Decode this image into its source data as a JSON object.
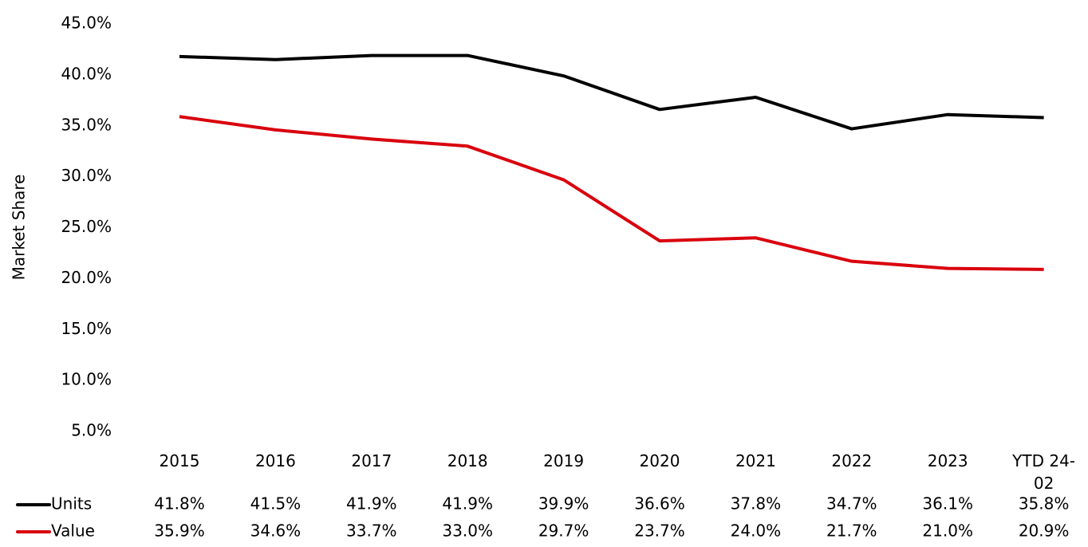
{
  "chart_data": {
    "type": "line",
    "y_label": "Market Share",
    "categories": [
      "2015",
      "2016",
      "2017",
      "2018",
      "2019",
      "2020",
      "2021",
      "2022",
      "2023",
      "YTD 24-02"
    ],
    "series": [
      {
        "name": "Units",
        "color": "#000000",
        "values": [
          41.8,
          41.5,
          41.9,
          41.9,
          39.9,
          36.6,
          37.8,
          34.7,
          36.1,
          35.8
        ],
        "value_labels": [
          "41.8%",
          "41.5%",
          "41.9%",
          "41.9%",
          "39.9%",
          "36.6%",
          "37.8%",
          "34.7%",
          "36.1%",
          "35.8%"
        ]
      },
      {
        "name": "Value",
        "color": "#d9000d",
        "values": [
          35.9,
          34.6,
          33.7,
          33.0,
          29.7,
          23.7,
          24.0,
          21.7,
          21.0,
          20.9
        ],
        "value_labels": [
          "35.9%",
          "34.6%",
          "33.7%",
          "33.0%",
          "29.7%",
          "23.7%",
          "24.0%",
          "21.7%",
          "21.0%",
          "20.9%"
        ]
      }
    ],
    "ylim": [
      5,
      45
    ],
    "yticks": [
      {
        "value": 5,
        "label": "5.0%"
      },
      {
        "value": 10,
        "label": "10.0%"
      },
      {
        "value": 15,
        "label": "15.0%"
      },
      {
        "value": 20,
        "label": "20.0%"
      },
      {
        "value": 25,
        "label": "25.0%"
      },
      {
        "value": 30,
        "label": "30.0%"
      },
      {
        "value": 35,
        "label": "35.0%"
      },
      {
        "value": 40,
        "label": "40.0%"
      },
      {
        "value": 45,
        "label": "45.0%"
      }
    ],
    "grid": false
  }
}
